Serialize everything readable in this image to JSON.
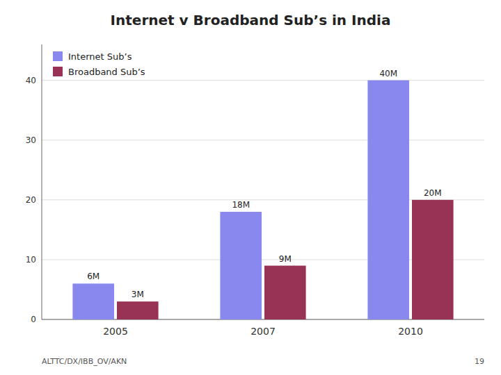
{
  "chart_data": {
    "type": "bar",
    "title": "Internet v Broadband Sub’s in India",
    "categories": [
      "2005",
      "2007",
      "2010"
    ],
    "series": [
      {
        "name": "Internet Sub’s",
        "color": "#8888EE",
        "values": [
          6,
          18,
          40
        ],
        "value_labels": [
          "6M",
          "18M",
          "40M"
        ]
      },
      {
        "name": "Broadband Sub’s",
        "color": "#993355",
        "values": [
          3,
          9,
          20
        ],
        "value_labels": [
          "3M",
          "9M",
          "20M"
        ]
      }
    ],
    "ylim": [
      0,
      46
    ],
    "yticks": [
      0,
      10,
      20,
      30,
      40
    ],
    "grid": true,
    "legend": "upper left",
    "data_labels": true,
    "annotations": [
      "ALTTC/DX/IBB_OV/AKN",
      "19"
    ]
  }
}
